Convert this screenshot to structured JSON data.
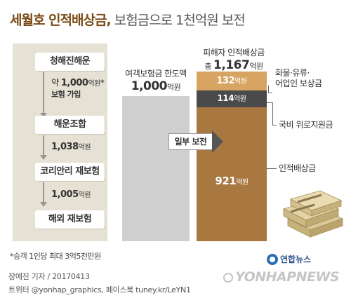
{
  "title": {
    "main": "세월호 인적배상금",
    "sep": ",",
    "sub": " 보험금으로 1천억원 보전"
  },
  "flow": {
    "steps": [
      "청해진해운",
      "해운조합",
      "코리안리 재보험",
      "해외 재보험"
    ],
    "notes": [
      {
        "prefix": "약 ",
        "value": "1,000",
        "unit": "억원",
        "mark": "*",
        "line2": "보험 가입"
      },
      {
        "prefix": "",
        "value": "1,038",
        "unit": "억원",
        "mark": "",
        "line2": ""
      },
      {
        "prefix": "",
        "value": "1,005",
        "unit": "억원",
        "mark": "",
        "line2": ""
      }
    ]
  },
  "arrow_label": "일부 보전",
  "footnote": "*승객 1인당 최대 3억5천만원",
  "credits": {
    "line1": "장예진 기자 / 20170413",
    "line2": "트위터 @yonhap_graphics, 페이스북 tuney.kr/LeYN1"
  },
  "logo": {
    "name": "연합뉴스",
    "watermark": "YONHAPNEWS"
  },
  "colors": {
    "brown_dark": "#9c6a32",
    "brown_light": "#d8a462",
    "brown_mid": "#a87840",
    "band_dark": "#4a4a4a",
    "grey_bar": "#cfcfcf",
    "panel": "#e5e1d4"
  },
  "chart_data": {
    "type": "bar",
    "unit": "억원",
    "bars": [
      {
        "label": "여객보험금 한도액",
        "prefix": "",
        "total": 1000,
        "total_text": "1,000"
      },
      {
        "label": "피해자 인적배상금",
        "prefix": "총 ",
        "total": 1167,
        "total_text": "1,167",
        "segments": [
          {
            "name": "화물·유류·\n어업인 보상금",
            "value": 132,
            "value_text": "132"
          },
          {
            "name": "국비 위로지원금",
            "value": 114,
            "value_text": "114"
          },
          {
            "name": "인적배상금",
            "value": 921,
            "value_text": "921"
          }
        ]
      }
    ]
  }
}
